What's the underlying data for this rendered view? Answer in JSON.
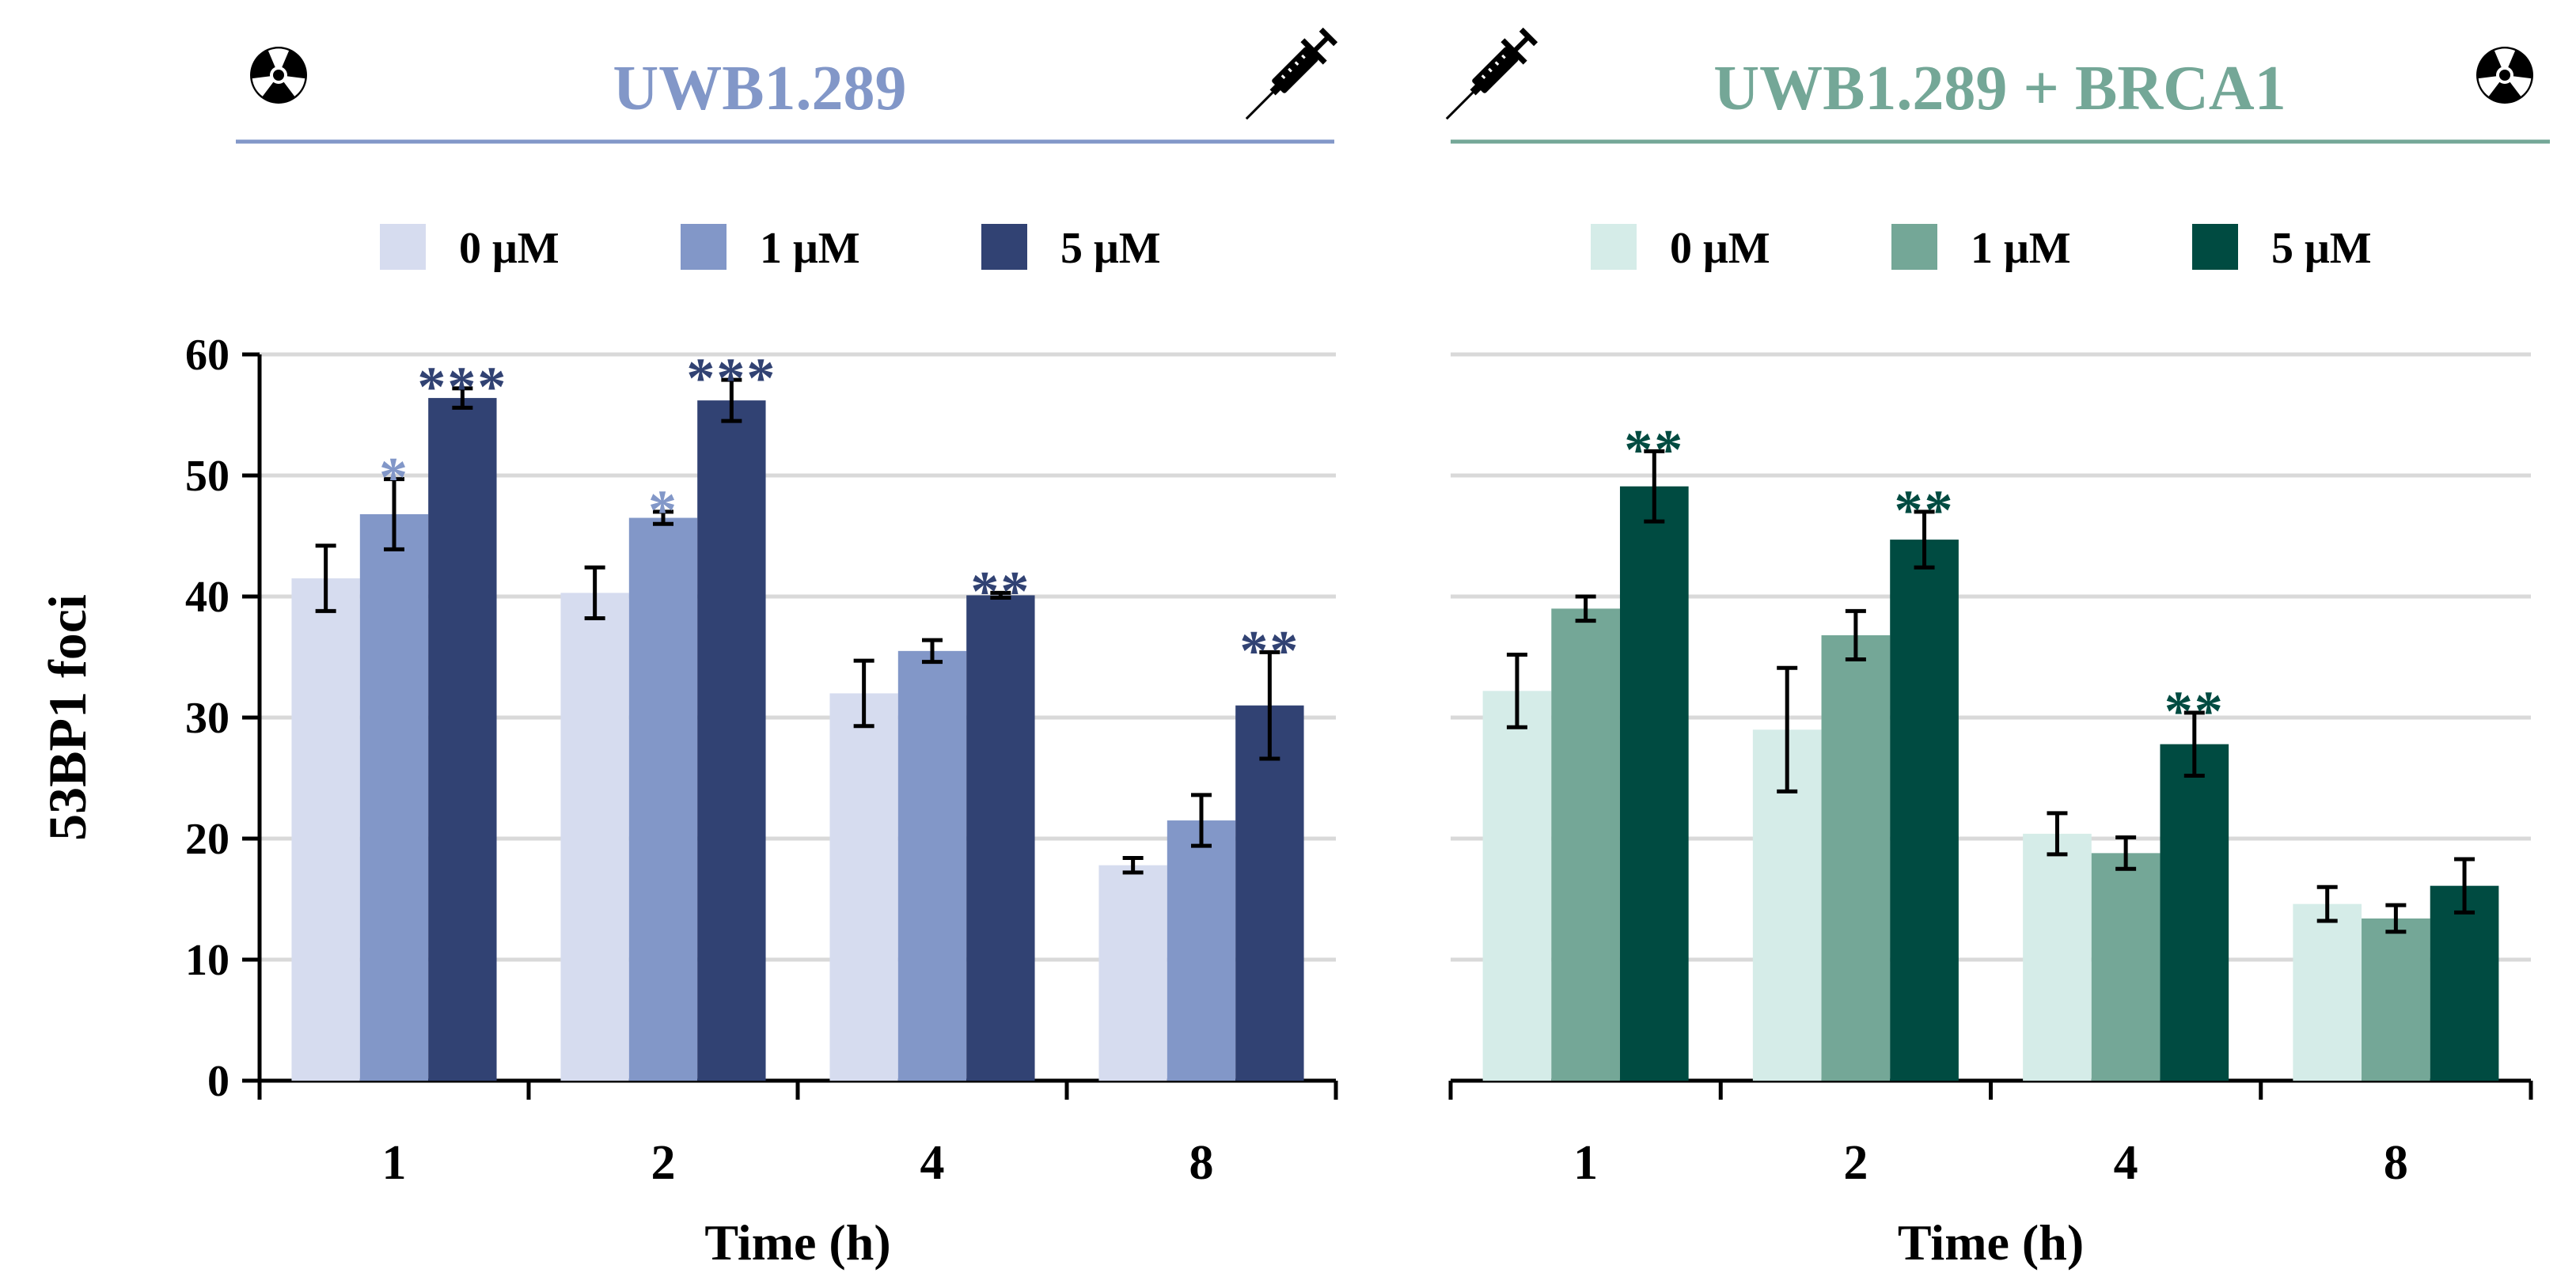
{
  "chart_data": [
    {
      "type": "bar",
      "title": "UWB1.289",
      "title_color": "#8297c8",
      "xlabel": "Time (h)",
      "ylabel": "53BP1 foci",
      "ylim": [
        0,
        60
      ],
      "yticks": [
        0,
        10,
        20,
        30,
        40,
        50,
        60
      ],
      "grid": true,
      "legend_position": "top",
      "icons": {
        "left": "radiation-icon",
        "right": "syringe-icon"
      },
      "categories": [
        "1",
        "2",
        "4",
        "8"
      ],
      "series": [
        {
          "name": "0 μM",
          "color": "#d6dcef",
          "values": [
            41.5,
            40.3,
            32.0,
            17.8
          ],
          "errors": [
            2.7,
            2.1,
            2.7,
            0.6
          ],
          "significance": [
            "",
            "",
            "",
            ""
          ],
          "sig_color": "#d6dcef"
        },
        {
          "name": "1 μM",
          "color": "#8297c8",
          "values": [
            46.8,
            46.5,
            35.5,
            21.5
          ],
          "errors": [
            2.9,
            0.5,
            0.9,
            2.1
          ],
          "significance": [
            "*",
            "*",
            "",
            ""
          ],
          "sig_color": "#8297c8"
        },
        {
          "name": "5 μM",
          "color": "#314273",
          "values": [
            56.4,
            56.2,
            40.1,
            31.0
          ],
          "errors": [
            0.8,
            1.7,
            0.2,
            4.4
          ],
          "significance": [
            "***",
            "***",
            "**",
            "**"
          ],
          "sig_color": "#314273"
        }
      ]
    },
    {
      "type": "bar",
      "title": "UWB1.289 + BRCA1",
      "title_color": "#74a797",
      "xlabel": "Time (h)",
      "ylabel": "",
      "ylim": [
        0,
        60
      ],
      "grid": true,
      "legend_position": "top",
      "icons": {
        "left": "syringe-icon",
        "right": "radiation-icon"
      },
      "categories": [
        "1",
        "2",
        "4",
        "8"
      ],
      "series": [
        {
          "name": "0 μM",
          "color": "#d5ece8",
          "values": [
            32.2,
            29.0,
            20.4,
            14.6
          ],
          "errors": [
            3.0,
            5.1,
            1.7,
            1.4
          ],
          "significance": [
            "",
            "",
            "",
            ""
          ],
          "sig_color": "#d5ece8"
        },
        {
          "name": "1 μM",
          "color": "#74a797",
          "values": [
            39.0,
            36.8,
            18.8,
            13.4
          ],
          "errors": [
            1.0,
            2.0,
            1.3,
            1.1
          ],
          "significance": [
            "",
            "",
            "",
            ""
          ],
          "sig_color": "#74a797"
        },
        {
          "name": "5 μM",
          "color": "#004b41",
          "values": [
            49.1,
            44.7,
            27.8,
            16.1
          ],
          "errors": [
            2.9,
            2.3,
            2.6,
            2.2
          ],
          "significance": [
            "**",
            "**",
            "**",
            ""
          ],
          "sig_color": "#004b41"
        }
      ]
    }
  ]
}
